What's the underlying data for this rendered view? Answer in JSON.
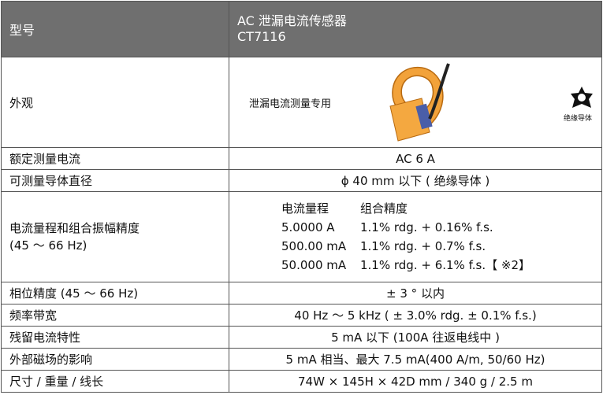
{
  "header": {
    "label": "型号",
    "product_name": "AC 泄漏电流传感器",
    "model": "CT7116"
  },
  "appearance": {
    "label": "外观",
    "note": "泄漏电流测量专用",
    "badge": "绝缘导体"
  },
  "rows": [
    {
      "label": "额定测量电流",
      "value": "AC 6 A"
    },
    {
      "label": "可测量导体直径",
      "value": "ϕ 40 mm 以下 ( 绝缘导体 )"
    }
  ],
  "accuracy": {
    "label": [
      "电流量程和组合振幅精度",
      "(45 ～ 66 Hz)"
    ],
    "headers": [
      "电流量程",
      "组合精度"
    ],
    "rows": [
      [
        "5.0000 A",
        "1.1% rdg. + 0.16% f.s."
      ],
      [
        "500.00 mA",
        "1.1% rdg. + 0.7% f.s."
      ],
      [
        "50.000 mA",
        "1.1% rdg. + 6.1% f.s.【 ※2】"
      ]
    ]
  },
  "rows_after": [
    {
      "label": "相位精度 (45 ～ 66 Hz)",
      "value": "± 3 °  以内"
    },
    {
      "label": "频率带宽",
      "value": "40 Hz ～ 5 kHz ( ± 3.0% rdg.  ± 0.1% f.s.)"
    },
    {
      "label": "残留电流特性",
      "value": "5 mA 以下 (100A 往返电线中 )"
    },
    {
      "label": "外部磁场的影响",
      "value": "5 mA 相当、最大 7.5 mA(400 A/m, 50/60 Hz)"
    },
    {
      "label": "尺寸 / 重量 / 线长",
      "value": "74W × 145H × 42D mm / 340 g / 2.5 m"
    }
  ]
}
